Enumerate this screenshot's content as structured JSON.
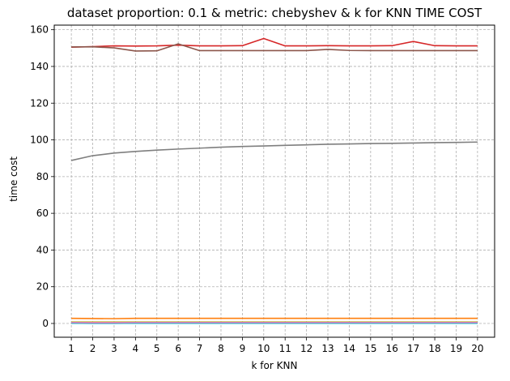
{
  "chart_data": {
    "type": "line",
    "title": "dataset proportion: 0.1 & metric: chebyshev & k for KNN TIME COST",
    "xlabel": "k for KNN",
    "ylabel": "time cost",
    "x": [
      1,
      2,
      3,
      4,
      5,
      6,
      7,
      8,
      9,
      10,
      11,
      12,
      13,
      14,
      15,
      16,
      17,
      18,
      19,
      20
    ],
    "xlim": [
      0.2,
      20.8
    ],
    "ylim": [
      -7.5,
      162.5
    ],
    "yticks": [
      0,
      20,
      40,
      60,
      80,
      100,
      120,
      140,
      160
    ],
    "grid": true,
    "series": [
      {
        "color": "#d62728",
        "values": [
          150.5,
          150.8,
          151.2,
          151.1,
          151.2,
          151.6,
          151.2,
          151.2,
          151.3,
          155.2,
          151.2,
          151.2,
          151.3,
          151.2,
          151.2,
          151.3,
          153.6,
          151.3,
          151.2,
          151.2
        ]
      },
      {
        "color": "#8c564b",
        "values": [
          150.6,
          150.7,
          150.1,
          148.4,
          148.5,
          152.3,
          148.6,
          148.6,
          148.6,
          148.6,
          148.6,
          148.6,
          149.3,
          148.7,
          148.6,
          148.6,
          148.6,
          148.6,
          148.6,
          148.6
        ]
      },
      {
        "color": "#7f7f7f",
        "values": [
          88.8,
          91.4,
          92.8,
          93.7,
          94.4,
          95.0,
          95.5,
          96.0,
          96.4,
          96.7,
          97.0,
          97.3,
          97.6,
          97.8,
          98.0,
          98.1,
          98.3,
          98.5,
          98.6,
          98.8
        ]
      },
      {
        "color": "#ff7f0e",
        "values": [
          2.8,
          2.7,
          2.6,
          2.8,
          2.8,
          2.8,
          2.8,
          2.8,
          2.8,
          2.8,
          2.8,
          2.8,
          2.8,
          2.8,
          2.8,
          2.8,
          2.8,
          2.8,
          2.8,
          2.8
        ]
      },
      {
        "color": "#bcbd22",
        "values": [
          0.8,
          0.8,
          0.8,
          0.8,
          0.8,
          0.8,
          0.8,
          0.8,
          0.8,
          0.8,
          0.8,
          0.8,
          0.8,
          0.8,
          0.8,
          0.8,
          0.8,
          0.8,
          0.8,
          0.8
        ]
      },
      {
        "color": "#1f77b4",
        "values": [
          0.2,
          0.1,
          0.1,
          0.2,
          0.2,
          0.2,
          0.2,
          0.2,
          0.2,
          0.2,
          0.2,
          0.2,
          0.2,
          0.2,
          0.2,
          0.2,
          0.2,
          0.2,
          0.2,
          0.2
        ]
      },
      {
        "color": "#2ca02c",
        "values": [
          0.4,
          0.3,
          0.3,
          0.4,
          0.4,
          0.4,
          0.4,
          0.4,
          0.4,
          0.4,
          0.4,
          0.4,
          0.4,
          0.4,
          0.4,
          0.4,
          0.4,
          0.4,
          0.4,
          0.4
        ]
      },
      {
        "color": "#9467bd",
        "values": [
          0.3,
          0.3,
          0.3,
          0.3,
          0.3,
          0.3,
          0.3,
          0.3,
          0.3,
          0.3,
          0.3,
          0.3,
          0.3,
          0.3,
          0.3,
          0.3,
          0.3,
          0.3,
          0.3,
          0.3
        ]
      },
      {
        "color": "#17becf",
        "values": [
          0.1,
          0.1,
          0.1,
          0.1,
          0.1,
          0.1,
          0.1,
          0.1,
          0.1,
          0.1,
          0.1,
          0.1,
          0.1,
          0.1,
          0.1,
          0.1,
          0.1,
          0.1,
          0.1,
          0.1
        ]
      },
      {
        "color": "#e377c2",
        "values": [
          0.5,
          0.4,
          0.4,
          0.5,
          0.5,
          0.5,
          0.5,
          0.5,
          0.5,
          0.5,
          0.5,
          0.5,
          0.5,
          0.5,
          0.5,
          0.5,
          0.5,
          0.5,
          0.5,
          0.5
        ]
      }
    ]
  }
}
